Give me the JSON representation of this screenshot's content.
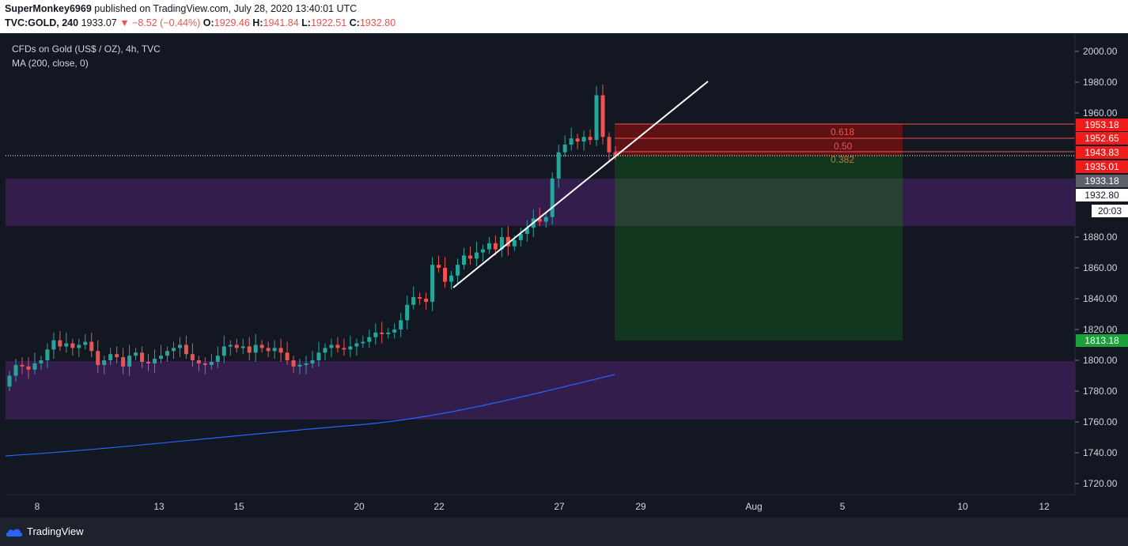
{
  "header": {
    "publisher": "SuperMonkey6969",
    "published_text": " published on TradingView.com, July 28, 2020 13:40:01 UTC",
    "symbol": "TVC:GOLD, 240",
    "last": "1933.07",
    "change": "▼ −8.52 (−0.44%)",
    "open_label": "O:",
    "open": "1929.46",
    "high_label": "H:",
    "high": "1941.84",
    "low_label": "L:",
    "low": "1922.51",
    "close_label": "C:",
    "close": "1932.80"
  },
  "legend": {
    "title": "CFDs on Gold (US$ / OZ), 4h, TVC",
    "indicator": "MA (200, close, 0)"
  },
  "price_axis": {
    "ticks": [
      "2000.00",
      "1980.00",
      "1960.00",
      "1880.00",
      "1860.00",
      "1840.00",
      "1820.00",
      "1800.00",
      "1780.00",
      "1760.00",
      "1740.00",
      "1720.00"
    ]
  },
  "price_badges": {
    "b1953": "1953.18",
    "b1952": "1952.65",
    "b1943": "1943.83",
    "b1935": "1935.01",
    "b1933": "1933.18",
    "b1932": "1932.80",
    "countdown": "20:03",
    "b1813": "1813.18"
  },
  "fib_labels": {
    "f618": "0.618",
    "f50": "0.50",
    "f382": "0.382"
  },
  "time_axis": {
    "labels": [
      "8",
      "13",
      "15",
      "20",
      "22",
      "27",
      "29",
      "Aug",
      "5",
      "10",
      "12"
    ]
  },
  "footer": {
    "brand": "TradingView"
  },
  "colors": {
    "up": "#26a69a",
    "down": "#ef5350",
    "ma": "#2962ff",
    "zone": "#3a1f55"
  }
}
